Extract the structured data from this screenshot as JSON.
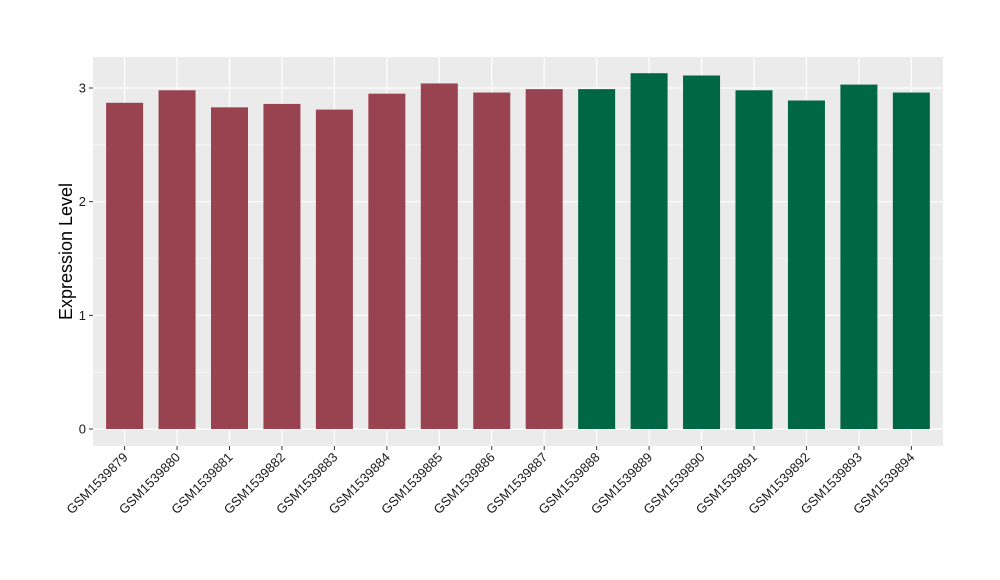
{
  "chart_data": {
    "type": "bar",
    "title": "",
    "xlabel": "",
    "ylabel": "Expression Level",
    "ylim": [
      0,
      3.2
    ],
    "yticks": [
      0,
      1,
      2,
      3
    ],
    "grid": true,
    "legend": "none",
    "categories": [
      "GSM1539879",
      "GSM1539880",
      "GSM1539881",
      "GSM1539882",
      "GSM1539883",
      "GSM1539884",
      "GSM1539885",
      "GSM1539886",
      "GSM1539887",
      "GSM1539888",
      "GSM1539889",
      "GSM1539890",
      "GSM1539891",
      "GSM1539892",
      "GSM1539893",
      "GSM1539894"
    ],
    "values": [
      2.87,
      2.98,
      2.83,
      2.86,
      2.81,
      2.95,
      3.04,
      2.96,
      2.99,
      2.99,
      3.13,
      3.11,
      2.98,
      2.89,
      3.03,
      2.96
    ],
    "group": [
      "a",
      "a",
      "a",
      "a",
      "a",
      "a",
      "a",
      "a",
      "a",
      "b",
      "b",
      "b",
      "b",
      "b",
      "b",
      "b"
    ],
    "group_colors": {
      "a": "#9a4350",
      "b": "#006744"
    },
    "panel_background": "#ebebeb",
    "grid_color": "#ffffff"
  }
}
